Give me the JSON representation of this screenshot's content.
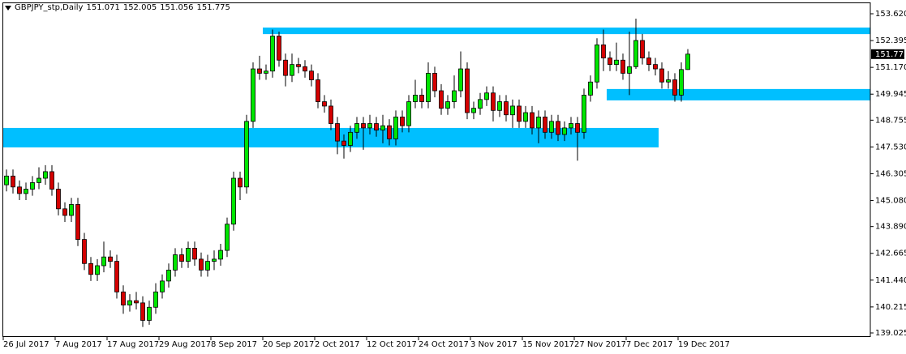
{
  "chart_data": {
    "type": "candlestick",
    "title": "GBPJPY_stp,Daily",
    "x": [
      "26 Jul 2017",
      null,
      null,
      null,
      null,
      null,
      null,
      null,
      "7 Aug 2017",
      null,
      null,
      null,
      null,
      null,
      null,
      null,
      "17 Aug 2017",
      null,
      null,
      null,
      null,
      null,
      null,
      null,
      "29 Aug 2017",
      null,
      null,
      null,
      null,
      null,
      null,
      null,
      "8 Sep 2017",
      null,
      null,
      null,
      null,
      null,
      null,
      null,
      "20 Sep 2017",
      null,
      null,
      null,
      null,
      null,
      null,
      null,
      "2 Oct 2017",
      null,
      null,
      null,
      null,
      null,
      null,
      null,
      "12 Oct 2017",
      null,
      null,
      null,
      null,
      null,
      null,
      null,
      "24 Oct 2017",
      null,
      null,
      null,
      null,
      null,
      null,
      null,
      "3 Nov 2017",
      null,
      null,
      null,
      null,
      null,
      null,
      null,
      "15 Nov 2017",
      null,
      null,
      null,
      null,
      null,
      null,
      null,
      "27 Nov 2017",
      null,
      null,
      null,
      null,
      null,
      null,
      null,
      "7 Dec 2017",
      null,
      null,
      null,
      null,
      null,
      null,
      null,
      "19 Dec 2017",
      null
    ],
    "open": [
      145.8,
      146.2,
      145.7,
      145.4,
      145.6,
      145.9,
      146.1,
      146.4,
      145.6,
      144.7,
      144.4,
      144.9,
      143.3,
      142.2,
      141.7,
      142.1,
      142.5,
      142.3,
      140.9,
      140.3,
      140.5,
      140.4,
      139.6,
      140.2,
      140.9,
      141.4,
      141.9,
      142.6,
      142.3,
      142.9,
      142.4,
      141.9,
      142.3,
      142.4,
      142.8,
      144.0,
      146.1,
      145.7,
      148.7,
      151.1,
      150.9,
      151.0,
      152.6,
      151.5,
      150.8,
      151.3,
      151.2,
      151.0,
      150.6,
      149.6,
      149.4,
      148.6,
      147.8,
      147.6,
      148.2,
      148.6,
      148.4,
      148.6,
      148.3,
      148.5,
      147.9,
      148.9,
      148.5,
      149.6,
      149.9,
      149.6,
      150.9,
      150.1,
      149.3,
      149.6,
      150.1,
      151.1,
      149.1,
      149.3,
      149.7,
      150.0,
      149.2,
      149.6,
      149.0,
      149.4,
      148.7,
      149.1,
      148.4,
      148.9,
      148.2,
      148.7,
      148.1,
      148.4,
      148.6,
      148.2,
      149.9,
      150.5,
      152.2,
      151.6,
      151.3,
      151.5,
      150.9,
      151.2,
      152.4,
      151.6,
      151.3,
      151.1,
      150.5,
      150.6,
      149.9,
      151.071
    ],
    "high": [
      146.5,
      146.5,
      146.0,
      145.9,
      146.2,
      146.6,
      146.7,
      146.7,
      145.9,
      145.0,
      145.2,
      145.2,
      143.6,
      142.5,
      142.4,
      143.2,
      142.8,
      142.6,
      141.2,
      140.8,
      140.9,
      140.7,
      140.5,
      141.3,
      141.7,
      142.2,
      142.9,
      142.9,
      143.2,
      143.2,
      142.7,
      142.6,
      142.8,
      143.1,
      144.3,
      146.4,
      146.4,
      149.0,
      151.4,
      151.7,
      151.3,
      152.9,
      152.8,
      151.8,
      151.8,
      151.6,
      151.5,
      151.3,
      150.9,
      149.9,
      149.7,
      148.9,
      148.1,
      148.5,
      148.9,
      148.9,
      149.0,
      148.9,
      149.0,
      148.8,
      149.2,
      149.2,
      149.9,
      150.6,
      150.2,
      151.4,
      151.2,
      150.4,
      149.9,
      150.8,
      151.9,
      151.4,
      149.6,
      150.0,
      150.3,
      150.3,
      149.9,
      149.9,
      149.7,
      149.7,
      149.4,
      149.4,
      149.2,
      149.2,
      149.0,
      149.0,
      148.7,
      148.9,
      148.9,
      150.2,
      150.8,
      152.5,
      152.9,
      151.9,
      152.3,
      151.8,
      152.8,
      153.4,
      152.7,
      151.9,
      151.6,
      151.4,
      151.0,
      150.9,
      151.4,
      152.005
    ],
    "low": [
      145.5,
      145.4,
      145.1,
      145.1,
      145.3,
      145.6,
      145.8,
      145.3,
      144.4,
      144.1,
      144.1,
      143.0,
      141.9,
      141.4,
      141.4,
      141.8,
      142.0,
      140.6,
      139.9,
      140.0,
      140.1,
      139.3,
      139.4,
      139.9,
      140.6,
      141.1,
      141.6,
      142.0,
      142.0,
      142.1,
      141.6,
      141.6,
      141.9,
      142.1,
      142.5,
      143.7,
      145.1,
      145.4,
      148.4,
      150.6,
      150.6,
      150.7,
      151.2,
      150.3,
      150.5,
      150.9,
      150.7,
      150.3,
      149.3,
      149.1,
      148.3,
      147.2,
      147.0,
      147.3,
      147.9,
      147.4,
      148.1,
      148.0,
      147.7,
      147.6,
      147.6,
      148.2,
      148.2,
      149.3,
      149.3,
      149.3,
      149.8,
      149.0,
      149.0,
      149.3,
      149.8,
      148.8,
      148.8,
      149.0,
      149.4,
      148.7,
      148.9,
      148.7,
      148.4,
      148.4,
      148.4,
      148.1,
      147.7,
      147.9,
      147.9,
      147.8,
      147.8,
      148.1,
      146.9,
      147.9,
      149.6,
      150.2,
      151.0,
      151.0,
      151.0,
      150.6,
      149.9,
      151.1,
      151.3,
      151.0,
      150.8,
      150.2,
      150.2,
      149.6,
      149.6,
      151.056
    ],
    "close": [
      146.2,
      145.7,
      145.4,
      145.6,
      145.9,
      146.1,
      146.4,
      145.6,
      144.7,
      144.4,
      144.9,
      143.3,
      142.2,
      141.7,
      142.1,
      142.5,
      142.3,
      140.9,
      140.3,
      140.5,
      140.4,
      139.6,
      140.2,
      140.9,
      141.4,
      141.9,
      142.6,
      142.3,
      142.9,
      142.4,
      141.9,
      142.3,
      142.4,
      142.8,
      144.0,
      146.1,
      145.7,
      148.7,
      151.1,
      150.9,
      151.0,
      152.6,
      151.5,
      150.8,
      151.3,
      151.2,
      151.0,
      150.6,
      149.6,
      149.4,
      148.6,
      147.8,
      147.6,
      148.2,
      148.6,
      148.4,
      148.6,
      148.3,
      148.5,
      147.9,
      148.9,
      148.5,
      149.6,
      149.9,
      149.6,
      150.9,
      150.1,
      149.3,
      149.6,
      150.1,
      151.1,
      149.1,
      149.3,
      149.7,
      150.0,
      149.2,
      149.6,
      149.0,
      149.4,
      148.7,
      149.1,
      148.4,
      148.9,
      148.2,
      148.7,
      148.1,
      148.4,
      148.6,
      148.2,
      149.9,
      150.5,
      152.2,
      151.6,
      151.3,
      151.5,
      150.9,
      151.2,
      152.4,
      151.6,
      151.3,
      151.1,
      150.5,
      150.6,
      149.9,
      151.071,
      151.775
    ],
    "up_color": "#00e600",
    "down_color": "#d40000",
    "zone_color": "#00bfff",
    "zones": [
      {
        "low": 152.69,
        "high": 152.99,
        "start": 40,
        "extend": true
      },
      {
        "low": 147.51,
        "high": 148.4,
        "start": 0,
        "end": 100
      },
      {
        "low": 149.66,
        "high": 150.18,
        "start": 93,
        "extend": true
      }
    ],
    "ylim": [
      138.877,
      154.139
    ],
    "yticks": [
      {
        "value": 153.62,
        "label": "153.620"
      },
      152.395,
      {
        "value": 151.17,
        "label": "151.170"
      },
      149.945,
      148.755,
      {
        "value": 147.53,
        "label": "147.530"
      },
      146.305,
      {
        "value": 145.08,
        "label": "145.080"
      },
      {
        "value": 143.89,
        "label": "143.890"
      },
      142.665,
      {
        "value": 141.44,
        "label": "141.440"
      },
      140.215,
      139.025
    ]
  }
}
